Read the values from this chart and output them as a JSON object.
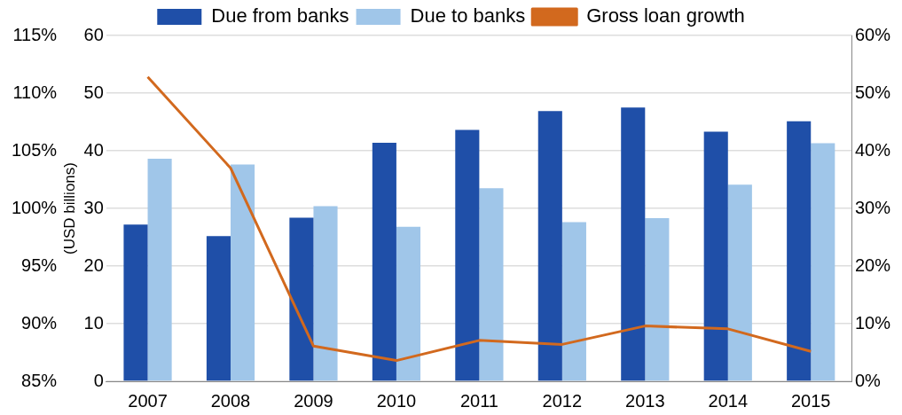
{
  "chart_data": {
    "type": "bar",
    "ylabel": "(USD billions)",
    "categories": [
      "2007",
      "2008",
      "2009",
      "2010",
      "2011",
      "2012",
      "2013",
      "2014",
      "2015"
    ],
    "series": [
      {
        "name": "Due from banks",
        "color": "#1f4fa8",
        "values": [
          27.2,
          25.2,
          28.4,
          41.4,
          43.6,
          46.9,
          47.5,
          43.3,
          45.1
        ]
      },
      {
        "name": "Due to banks",
        "color": "#a0c6e9",
        "values": [
          38.6,
          37.6,
          30.4,
          26.8,
          33.5,
          27.6,
          28.3,
          34.1,
          41.3
        ]
      },
      {
        "name": "Gross loan growth",
        "type": "line",
        "axis": "y2",
        "color": "#d2691e",
        "values": [
          52.8,
          37.0,
          6.1,
          3.6,
          7.1,
          6.4,
          9.6,
          9.1,
          5.2
        ]
      }
    ],
    "ylim": [
      0,
      60
    ],
    "yticks": [
      0,
      10,
      20,
      30,
      40,
      50,
      60
    ],
    "y2lim": [
      0,
      60
    ],
    "y2ticks": [
      {
        "value": 0,
        "label": "0%"
      },
      {
        "value": 10,
        "label": "10%"
      },
      {
        "value": 20,
        "label": "20%"
      },
      {
        "value": 30,
        "label": "30%"
      },
      {
        "value": 40,
        "label": "40%"
      },
      {
        "value": 50,
        "label": "50%"
      },
      {
        "value": 60,
        "label": "60%"
      }
    ],
    "y3lim": [
      85,
      115
    ],
    "y3ticks": [
      {
        "value": 85,
        "label": "85%"
      },
      {
        "value": 90,
        "label": "90%"
      },
      {
        "value": 95,
        "label": "95%"
      },
      {
        "value": 100,
        "label": "100%"
      },
      {
        "value": 105,
        "label": "105%"
      },
      {
        "value": 110,
        "label": "110%"
      },
      {
        "value": 115,
        "label": "115%"
      }
    ],
    "grid": "y",
    "legend": "top",
    "marker": "none"
  }
}
